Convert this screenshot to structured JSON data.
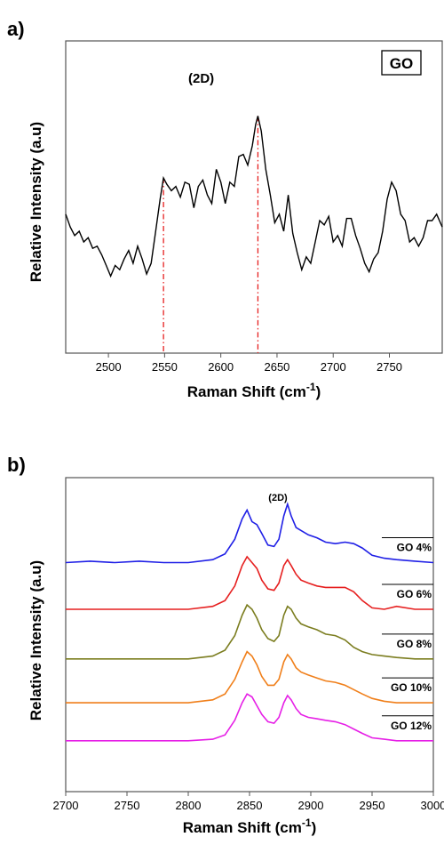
{
  "chart_data": [
    {
      "type": "line",
      "panel_label": "a)",
      "xlabel": "Raman Shift (cm",
      "xlabel_sup": "-1",
      "xlabel_tail": ")",
      "ylabel": "Relative Intensity (a.u)",
      "xlim": [
        2462,
        2797
      ],
      "ylim": [
        0,
        100
      ],
      "x_ticks": [
        2500,
        2550,
        2600,
        2650,
        2700,
        2750
      ],
      "y_ticks_labeled": false,
      "grid": false,
      "annotations": {
        "peak": "(2D)",
        "box": "GO"
      },
      "vlines": [
        2549,
        2633
      ],
      "series": [
        {
          "color": "#000000",
          "x": [
            2462,
            2466,
            2470,
            2474,
            2478,
            2482,
            2486,
            2490,
            2494,
            2498,
            2502,
            2506,
            2510,
            2514,
            2518,
            2522,
            2526,
            2530,
            2534,
            2538,
            2542,
            2546,
            2549,
            2552,
            2556,
            2560,
            2564,
            2568,
            2572,
            2576,
            2580,
            2584,
            2588,
            2592,
            2596,
            2600,
            2604,
            2608,
            2612,
            2616,
            2620,
            2624,
            2628,
            2631,
            2633,
            2636,
            2640,
            2644,
            2648,
            2652,
            2656,
            2660,
            2664,
            2668,
            2672,
            2676,
            2680,
            2684,
            2688,
            2692,
            2696,
            2700,
            2704,
            2708,
            2712,
            2716,
            2720,
            2724,
            2728,
            2732,
            2736,
            2740,
            2744,
            2748,
            2752,
            2756,
            2760,
            2764,
            2768,
            2772,
            2776,
            2780,
            2784,
            2788,
            2792,
            2797
          ],
          "y": [
            48,
            42,
            38,
            40,
            35,
            37,
            32,
            33,
            29,
            24,
            19,
            24,
            22,
            27,
            31,
            25,
            33,
            27,
            20,
            25,
            40,
            55,
            65,
            62,
            59,
            61,
            56,
            63,
            62,
            51,
            61,
            64,
            57,
            53,
            69,
            63,
            53,
            63,
            61,
            75,
            76,
            71,
            80,
            90,
            94,
            87,
            69,
            57,
            44,
            48,
            40,
            57,
            39,
            30,
            22,
            28,
            25,
            35,
            45,
            43,
            47,
            35,
            38,
            33,
            46,
            46,
            38,
            32,
            25,
            21,
            27,
            30,
            40,
            55,
            63,
            59,
            48,
            45,
            35,
            37,
            33,
            37,
            45,
            45,
            48,
            42
          ]
        }
      ]
    },
    {
      "type": "line",
      "panel_label": "b)",
      "xlabel": "Raman Shift (cm",
      "xlabel_sup": "-1",
      "xlabel_tail": ")",
      "ylabel": "Relative Intensity (a.u)",
      "xlim": [
        2700,
        3000
      ],
      "ylim": [
        0,
        100
      ],
      "x_ticks": [
        2700,
        2750,
        2800,
        2850,
        2900,
        2950,
        3000
      ],
      "y_ticks_labeled": false,
      "grid": false,
      "annotations": {
        "peak": "(2D)"
      },
      "series": [
        {
          "name": "GO 4%",
          "color": "#1f1fe6",
          "x": [
            2700,
            2720,
            2740,
            2760,
            2780,
            2800,
            2820,
            2830,
            2838,
            2844,
            2848,
            2852,
            2856,
            2860,
            2865,
            2870,
            2874,
            2878,
            2881,
            2884,
            2888,
            2892,
            2898,
            2905,
            2912,
            2920,
            2928,
            2935,
            2942,
            2950,
            2960,
            2970,
            2985,
            3000
          ],
          "y": [
            76,
            76.5,
            76,
            76.5,
            76,
            76,
            77,
            79,
            84,
            91,
            94,
            90,
            89,
            86,
            82,
            81.5,
            84,
            92,
            96,
            92,
            88,
            87,
            85.5,
            84.5,
            83,
            82.5,
            83,
            82.5,
            81,
            78.5,
            77.5,
            77,
            76.5,
            76
          ]
        },
        {
          "name": "GO 6%",
          "color": "#e61f1f",
          "x": [
            2700,
            2720,
            2740,
            2760,
            2780,
            2800,
            2820,
            2830,
            2838,
            2844,
            2848,
            2852,
            2856,
            2860,
            2865,
            2870,
            2874,
            2878,
            2881,
            2884,
            2888,
            2892,
            2898,
            2905,
            2912,
            2920,
            2928,
            2935,
            2942,
            2950,
            2960,
            2970,
            2985,
            3000
          ],
          "y": [
            60,
            60,
            60,
            60,
            60,
            60,
            61,
            63,
            68,
            75,
            78,
            76,
            74,
            70,
            67,
            66.5,
            69,
            75,
            77,
            75,
            72,
            70,
            69,
            68,
            67.5,
            67.5,
            67.5,
            66,
            63,
            60.5,
            60,
            61,
            60,
            60
          ]
        },
        {
          "name": "GO 8%",
          "color": "#7b7d1f",
          "x": [
            2700,
            2720,
            2740,
            2760,
            2780,
            2800,
            2820,
            2830,
            2838,
            2844,
            2848,
            2852,
            2856,
            2860,
            2865,
            2870,
            2874,
            2878,
            2881,
            2884,
            2888,
            2892,
            2898,
            2905,
            2912,
            2920,
            2928,
            2935,
            2942,
            2950,
            2960,
            2970,
            2985,
            3000
          ],
          "y": [
            43,
            43,
            43,
            43,
            43,
            43,
            44,
            46,
            51,
            58,
            61.5,
            60,
            57,
            53,
            50,
            49,
            51,
            58,
            61,
            60,
            57,
            55,
            54,
            53,
            51.5,
            51,
            49.5,
            47,
            45.5,
            44.5,
            44,
            43.5,
            43,
            43
          ]
        },
        {
          "name": "GO 10%",
          "color": "#f07f1a",
          "x": [
            2700,
            2720,
            2740,
            2760,
            2780,
            2800,
            2820,
            2830,
            2838,
            2844,
            2848,
            2852,
            2856,
            2860,
            2865,
            2870,
            2874,
            2878,
            2881,
            2884,
            2888,
            2892,
            2898,
            2905,
            2912,
            2920,
            2928,
            2935,
            2942,
            2950,
            2960,
            2970,
            2985,
            3000
          ],
          "y": [
            28,
            28,
            28,
            28,
            28,
            28,
            29,
            31,
            36,
            42,
            45.5,
            44,
            41,
            37,
            34,
            34,
            36,
            42,
            44.5,
            43,
            40,
            38.5,
            37.5,
            36.5,
            35.5,
            35,
            34,
            32.5,
            31,
            29.5,
            28.5,
            28,
            28,
            28
          ]
        },
        {
          "name": "GO 12%",
          "color": "#e61fe6",
          "x": [
            2700,
            2720,
            2740,
            2760,
            2780,
            2800,
            2820,
            2830,
            2838,
            2844,
            2848,
            2852,
            2856,
            2860,
            2865,
            2870,
            2874,
            2878,
            2881,
            2884,
            2888,
            2892,
            2898,
            2905,
            2912,
            2920,
            2928,
            2935,
            2942,
            2950,
            2960,
            2970,
            2985,
            3000
          ],
          "y": [
            15,
            15,
            15,
            15,
            15,
            15,
            15.5,
            17,
            22,
            28,
            31,
            30,
            27,
            24,
            21.5,
            21,
            23,
            28,
            30.5,
            29,
            26,
            24,
            23,
            22.5,
            22,
            21.5,
            20.5,
            19,
            17.5,
            16,
            15.5,
            15,
            15,
            15
          ]
        }
      ]
    }
  ]
}
